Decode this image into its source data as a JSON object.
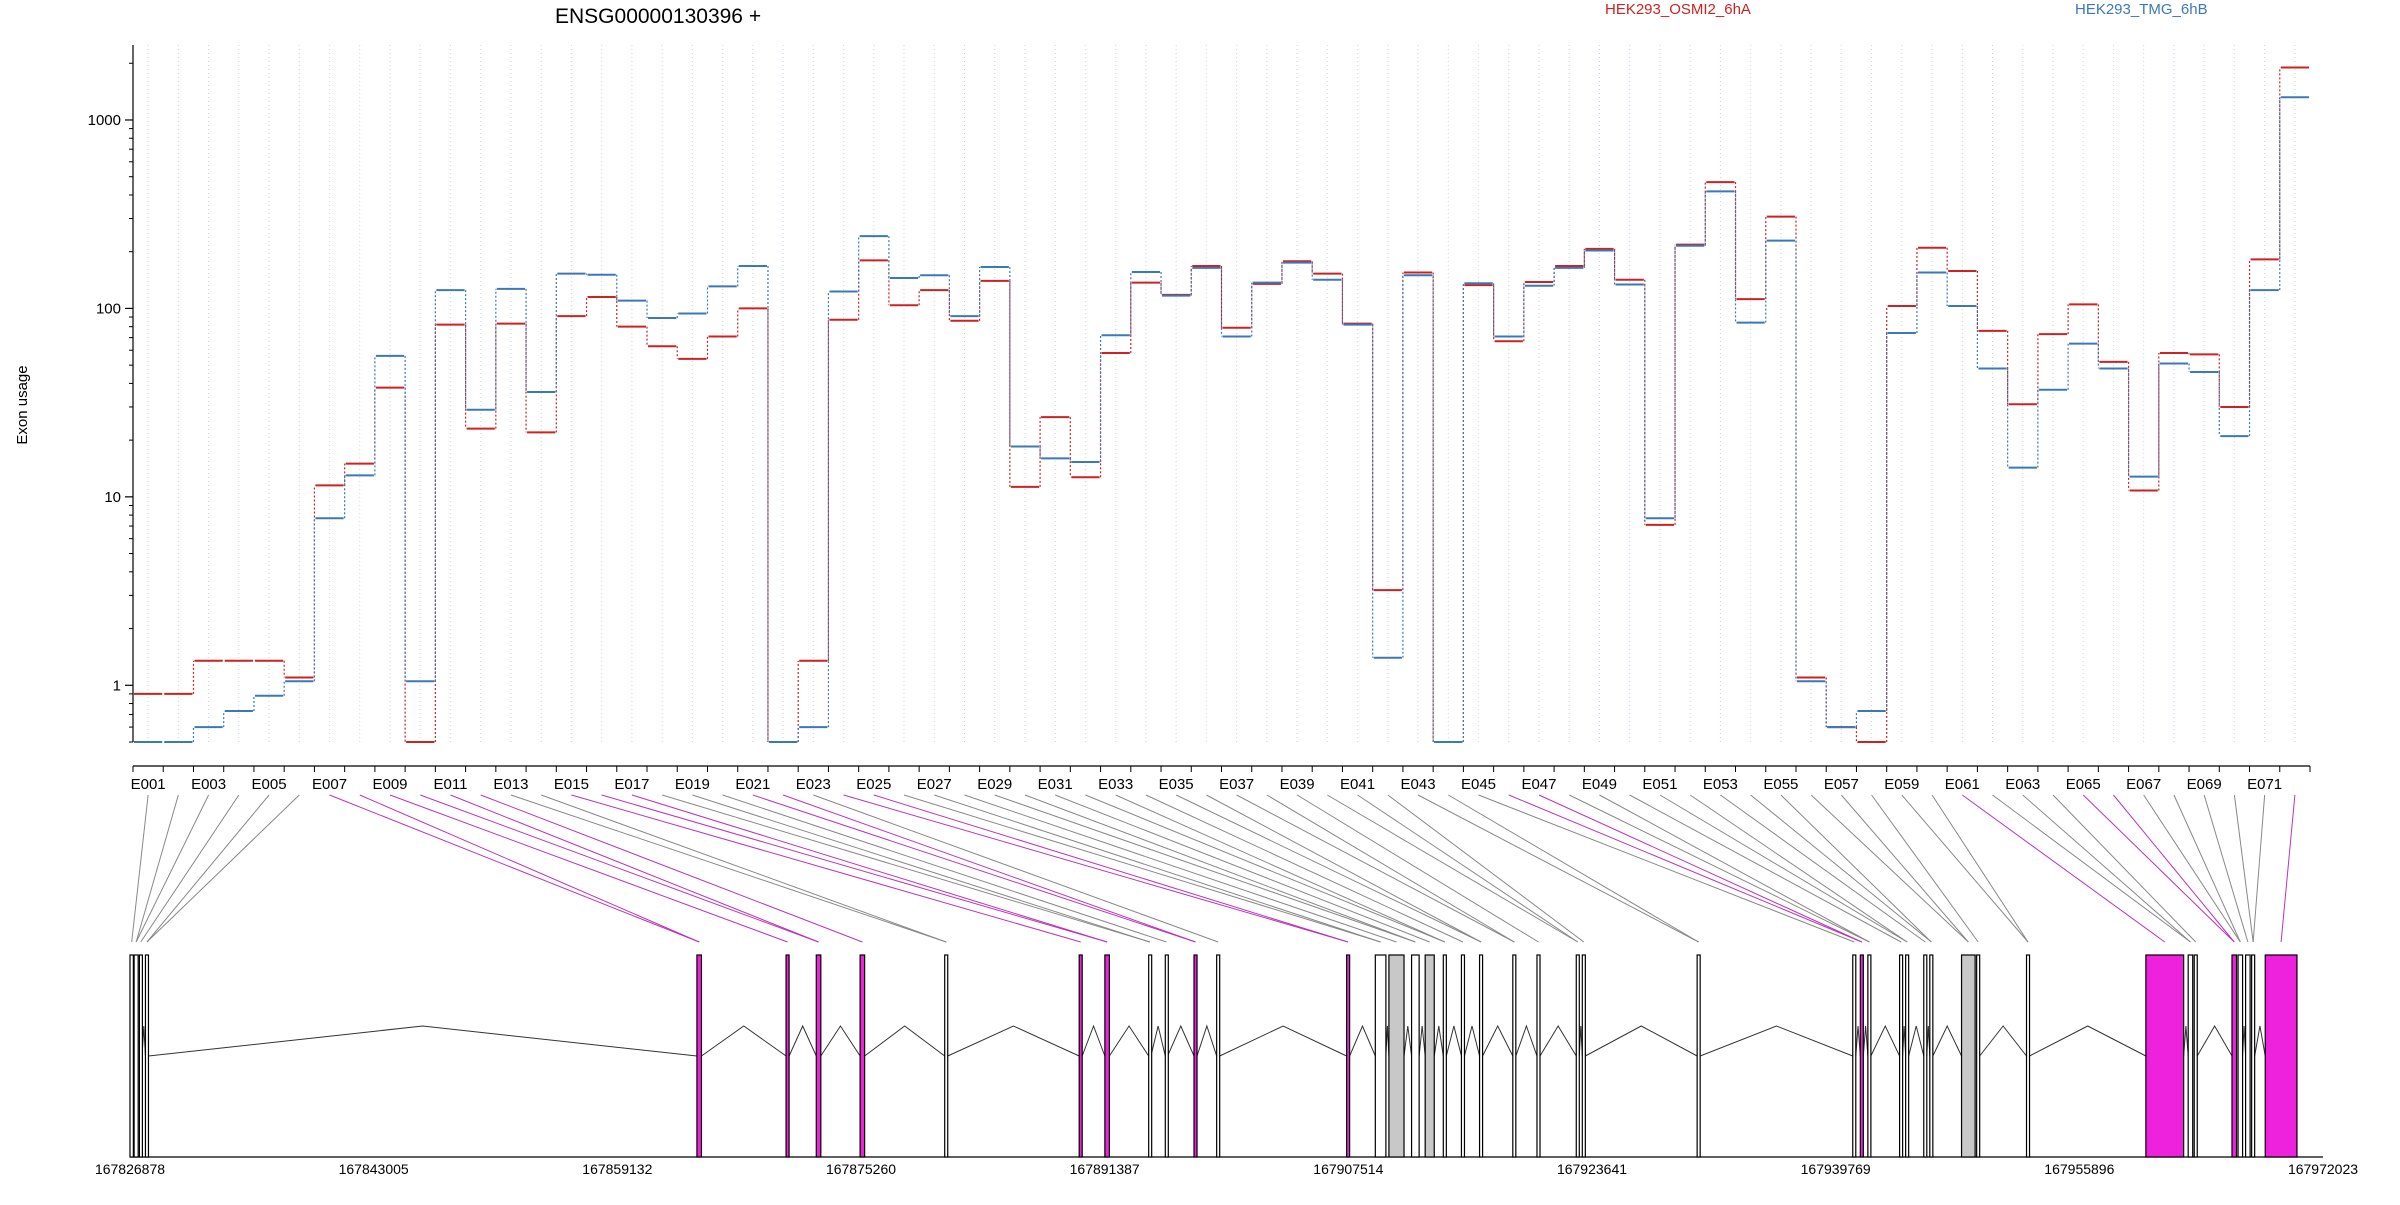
{
  "chart_data": {
    "type": "line",
    "title": "ENSG00000130396 +",
    "ylabel": "Exon usage",
    "yscale": "log",
    "yticks": [
      1,
      10,
      100,
      1000
    ],
    "ytick_labels": [
      "1",
      "10",
      "100",
      "1000"
    ],
    "ylim": [
      0.5,
      2500
    ],
    "grid": "vertical dotted per exon",
    "legend_position": "top",
    "categories": [
      "E001",
      "E002",
      "E003",
      "E004",
      "E005",
      "E006",
      "E007",
      "E008",
      "E009",
      "E010",
      "E011",
      "E012",
      "E013",
      "E014",
      "E015",
      "E016",
      "E017",
      "E018",
      "E019",
      "E020",
      "E021",
      "E022",
      "E023",
      "E024",
      "E025",
      "E026",
      "E027",
      "E028",
      "E029",
      "E030",
      "E031",
      "E032",
      "E033",
      "E034",
      "E035",
      "E036",
      "E037",
      "E038",
      "E039",
      "E040",
      "E041",
      "E042",
      "E043",
      "E044",
      "E045",
      "E046",
      "E047",
      "E048",
      "E049",
      "E050",
      "E051",
      "E052",
      "E053",
      "E054",
      "E055",
      "E056",
      "E057",
      "E058",
      "E059",
      "E060",
      "E061",
      "E062",
      "E063",
      "E064",
      "E065",
      "E066",
      "E067",
      "E068",
      "E069",
      "E070",
      "E071",
      "E072"
    ],
    "category_labels_shown": [
      "E001",
      "E003",
      "E005",
      "E007",
      "E009",
      "E011",
      "E013",
      "E015",
      "E017",
      "E019",
      "E021",
      "E023",
      "E025",
      "E027",
      "E029",
      "E031",
      "E033",
      "E035",
      "E037",
      "E039",
      "E041",
      "E043",
      "E045",
      "E047",
      "E049",
      "E051",
      "E053",
      "E055",
      "E057",
      "E059",
      "E061",
      "E063",
      "E065",
      "E067",
      "E069",
      "E071"
    ],
    "series": [
      {
        "name": "HEK293_OSMI2_6hA",
        "color": "#cc2222",
        "values": [
          0.9,
          0.9,
          1.35,
          1.35,
          1.35,
          1.1,
          11.5,
          15,
          38,
          0.5,
          82,
          23,
          83,
          22,
          91,
          115,
          80,
          63,
          54,
          71,
          100,
          0.5,
          1.35,
          87,
          180,
          104,
          125,
          86,
          140,
          11.3,
          26.5,
          12.7,
          58,
          137,
          118,
          168,
          79,
          135,
          178,
          153,
          83,
          3.2,
          155,
          0.5,
          133,
          67,
          138,
          168,
          207,
          142,
          7.1,
          218,
          468,
          112,
          307,
          1.1,
          0.6,
          0.5,
          103,
          210,
          158,
          76,
          31,
          73,
          105,
          52,
          10.8,
          58,
          57,
          30,
          182,
          1900
        ]
      },
      {
        "name": "HEK293_TMG_6hB",
        "color": "#3b78b8",
        "values": [
          0.5,
          0.5,
          0.6,
          0.73,
          0.88,
          1.05,
          7.7,
          13,
          56,
          1.05,
          125,
          29,
          127,
          36,
          153,
          151,
          110,
          89,
          94,
          131,
          168,
          0.5,
          0.6,
          123,
          242,
          145,
          150,
          91,
          166,
          18.5,
          16,
          15.3,
          72,
          156,
          117,
          164,
          71,
          137,
          175,
          142,
          82,
          1.4,
          150,
          0.5,
          136,
          71,
          132,
          164,
          203,
          134,
          7.7,
          215,
          418,
          84,
          229,
          1.05,
          0.6,
          0.73,
          74,
          155,
          103,
          48,
          14.3,
          37,
          65,
          48,
          12.8,
          51,
          46,
          21,
          125,
          1320
        ]
      }
    ],
    "gene_model": {
      "coordinate_labels": [
        "167826878",
        "167843005",
        "167859132",
        "167875260",
        "167891387",
        "167907514",
        "167923641",
        "167939769",
        "167955896",
        "167972023"
      ],
      "exons_bp": [
        [
          167826878,
          167827100
        ],
        [
          167827150,
          167827420
        ],
        [
          167827500,
          167827680
        ],
        [
          167827900,
          167828100
        ],
        [
          167864400,
          167864700
        ],
        [
          167870300,
          167870500
        ],
        [
          167872300,
          167872600
        ],
        [
          167875200,
          167875500
        ],
        [
          167880800,
          167881000
        ],
        [
          167889700,
          167889900
        ],
        [
          167891400,
          167891700
        ],
        [
          167894300,
          167894450
        ],
        [
          167895400,
          167895550
        ],
        [
          167897300,
          167897500
        ],
        [
          167898800,
          167899000
        ],
        [
          167907400,
          167907600
        ],
        [
          167909300,
          167910000
        ],
        [
          167910200,
          167911200
        ],
        [
          167911700,
          167912200
        ],
        [
          167912600,
          167913200
        ],
        [
          167913800,
          167914000
        ],
        [
          167915000,
          167915200
        ],
        [
          167916200,
          167916400
        ],
        [
          167918400,
          167918600
        ],
        [
          167920000,
          167920200
        ],
        [
          167922600,
          167922800
        ],
        [
          167923000,
          167923200
        ],
        [
          167930600,
          167930800
        ],
        [
          167940900,
          167941100
        ],
        [
          167941400,
          167941600
        ],
        [
          167941900,
          167942100
        ],
        [
          167944000,
          167944200
        ],
        [
          167944400,
          167944600
        ],
        [
          167945600,
          167945800
        ],
        [
          167946000,
          167946200
        ],
        [
          167948100,
          167949000
        ],
        [
          167949100,
          167949300
        ],
        [
          167952400,
          167952600
        ],
        [
          167960300,
          167962800
        ],
        [
          167963100,
          167963400
        ],
        [
          167963500,
          167963700
        ],
        [
          167966000,
          167966300
        ],
        [
          167966400,
          167966700
        ],
        [
          167966900,
          167967200
        ],
        [
          167967300,
          167967500
        ],
        [
          167968200,
          167970300
        ]
      ],
      "highlighted_exons": [
        4,
        5,
        6,
        7,
        9,
        10,
        13,
        15,
        29,
        38,
        41,
        45
      ],
      "grey_exons": [
        17,
        19,
        35
      ],
      "highlight_color": "#ee22dd"
    }
  }
}
